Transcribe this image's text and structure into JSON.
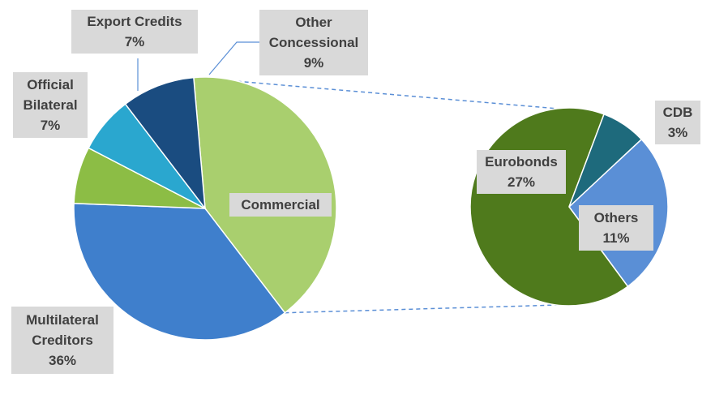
{
  "chart_data": {
    "type": "bar-of-pie",
    "main_pie": {
      "slices": [
        {
          "label": "Commercial",
          "value": 41,
          "value_label": "",
          "color": "#a9cf6e"
        },
        {
          "label": "Multilateral Creditors",
          "value": 36,
          "value_label": "36%",
          "color": "#3f7fcc"
        },
        {
          "label": "Official Bilateral",
          "value": 7,
          "value_label": "7%",
          "color": "#8cbd45"
        },
        {
          "label": "Export Credits",
          "value": 7,
          "value_label": "7%",
          "color": "#2aa7cf"
        },
        {
          "label": "Other Concessional",
          "value": 9,
          "value_label": "9%",
          "color": "#1a4c80"
        }
      ]
    },
    "secondary_pie": {
      "breakdown_of": "Commercial",
      "slices": [
        {
          "label": "Eurobonds",
          "value": 27,
          "value_label": "27%",
          "color": "#4f7a1c"
        },
        {
          "label": "CDB",
          "value": 3,
          "value_label": "3%",
          "color": "#1e6a7c"
        },
        {
          "label": "Others",
          "value": 11,
          "value_label": "11%",
          "color": "#5a8fd6"
        }
      ]
    },
    "connector_color": "#5b8fd6"
  }
}
